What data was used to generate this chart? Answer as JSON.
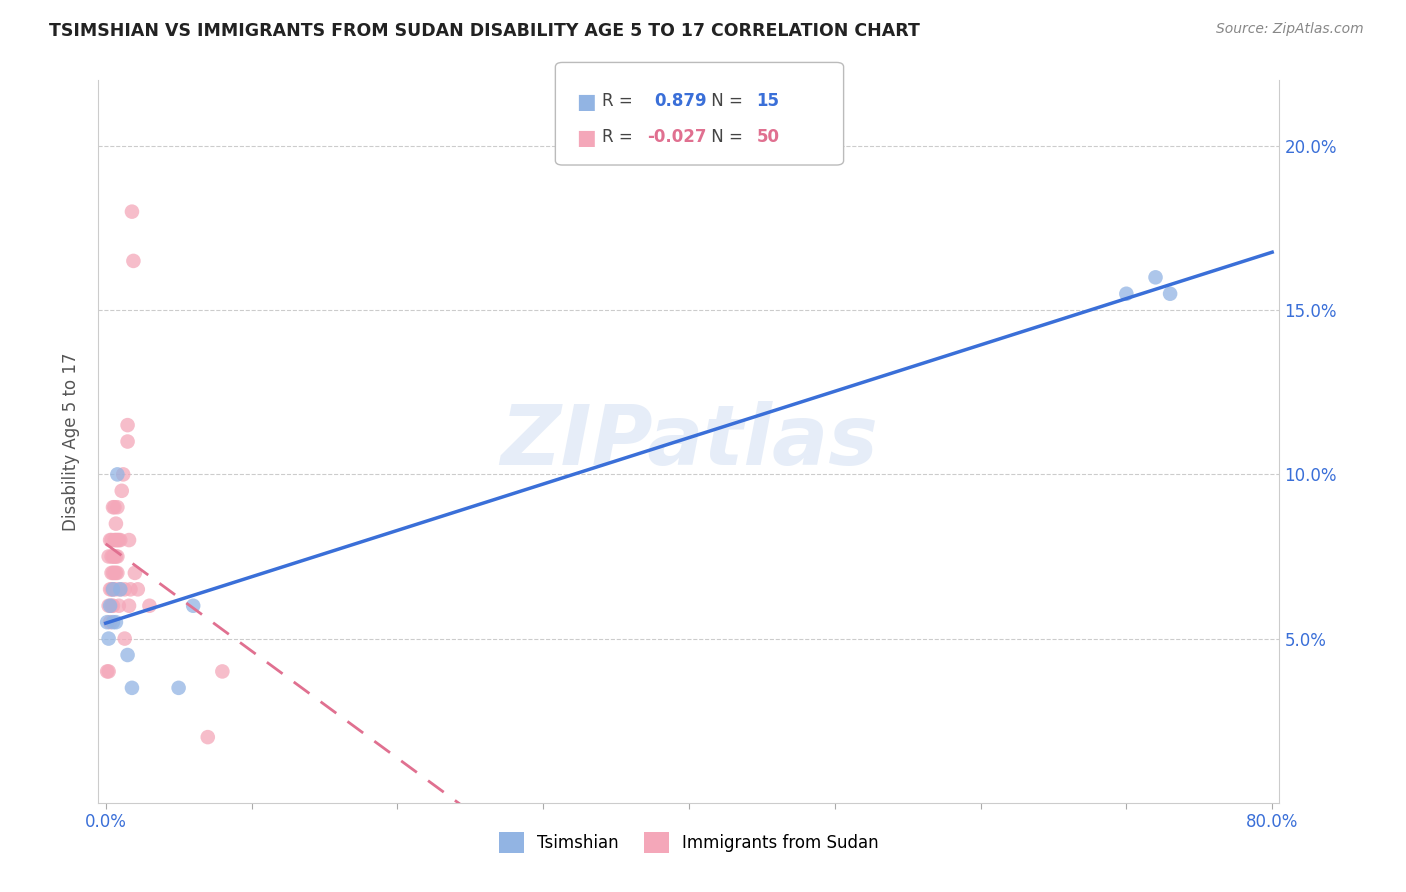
{
  "title": "TSIMSHIAN VS IMMIGRANTS FROM SUDAN DISABILITY AGE 5 TO 17 CORRELATION CHART",
  "source": "Source: ZipAtlas.com",
  "ylabel": "Disability Age 5 to 17",
  "xlim": [
    -0.005,
    0.805
  ],
  "ylim": [
    0.0,
    0.22
  ],
  "xtick_positions": [
    0.0,
    0.8
  ],
  "xtick_labels": [
    "0.0%",
    "80.0%"
  ],
  "ytick_positions": [
    0.05,
    0.1,
    0.15,
    0.2
  ],
  "ytick_labels": [
    "5.0%",
    "10.0%",
    "15.0%",
    "20.0%"
  ],
  "tsimshian_color": "#92b4e3",
  "sudan_color": "#f4a7b9",
  "blue_line_color": "#3a6fd8",
  "pink_line_color": "#e07090",
  "watermark": "ZIPatlas",
  "tsimshian_R": "0.879",
  "tsimshian_N": "15",
  "sudan_R": "-0.027",
  "sudan_N": "50",
  "tsimshian_x": [
    0.001,
    0.002,
    0.003,
    0.005,
    0.005,
    0.007,
    0.008,
    0.01,
    0.015,
    0.018,
    0.05,
    0.06,
    0.7,
    0.72,
    0.73
  ],
  "tsimshian_y": [
    0.055,
    0.05,
    0.06,
    0.065,
    0.055,
    0.055,
    0.1,
    0.065,
    0.045,
    0.035,
    0.035,
    0.06,
    0.155,
    0.16,
    0.155
  ],
  "sudan_x": [
    0.001,
    0.002,
    0.002,
    0.002,
    0.003,
    0.003,
    0.003,
    0.004,
    0.004,
    0.004,
    0.004,
    0.004,
    0.005,
    0.005,
    0.005,
    0.005,
    0.005,
    0.006,
    0.006,
    0.006,
    0.006,
    0.007,
    0.007,
    0.007,
    0.007,
    0.007,
    0.008,
    0.008,
    0.008,
    0.008,
    0.009,
    0.009,
    0.01,
    0.01,
    0.011,
    0.012,
    0.013,
    0.013,
    0.015,
    0.015,
    0.016,
    0.016,
    0.017,
    0.018,
    0.019,
    0.02,
    0.022,
    0.03,
    0.07,
    0.08
  ],
  "sudan_y": [
    0.04,
    0.04,
    0.06,
    0.075,
    0.055,
    0.065,
    0.08,
    0.06,
    0.065,
    0.07,
    0.075,
    0.08,
    0.06,
    0.065,
    0.07,
    0.075,
    0.09,
    0.07,
    0.075,
    0.08,
    0.09,
    0.065,
    0.07,
    0.075,
    0.08,
    0.085,
    0.07,
    0.075,
    0.08,
    0.09,
    0.06,
    0.08,
    0.065,
    0.08,
    0.095,
    0.1,
    0.05,
    0.065,
    0.11,
    0.115,
    0.06,
    0.08,
    0.065,
    0.18,
    0.165,
    0.07,
    0.065,
    0.06,
    0.02,
    0.04
  ]
}
